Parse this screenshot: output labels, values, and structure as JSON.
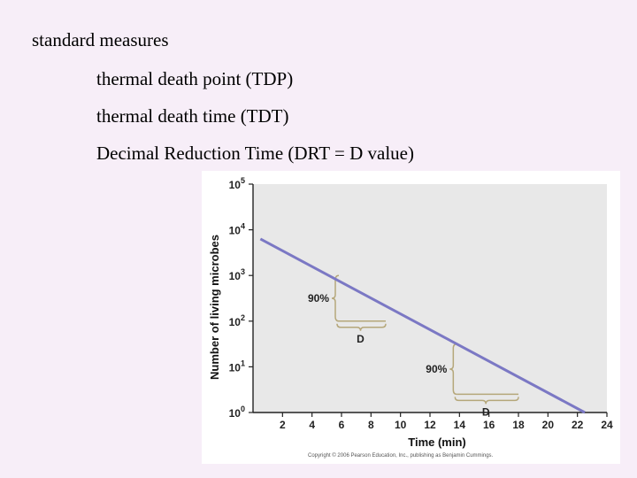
{
  "slide": {
    "lines": [
      "standard measures",
      "thermal death point (TDP)",
      "thermal death time (TDT)",
      "Decimal Reduction Time (DRT = D value)"
    ]
  },
  "chart_data": {
    "type": "line",
    "xlabel": "Time (min)",
    "ylabel": "Number of living microbes",
    "y_scale": "log",
    "xlim": [
      0,
      24
    ],
    "ylim": [
      1,
      100000
    ],
    "x_ticks": [
      2,
      4,
      6,
      8,
      10,
      12,
      14,
      16,
      18,
      20,
      22,
      24
    ],
    "y_ticks": [
      {
        "base": "10",
        "exp": "0"
      },
      {
        "base": "10",
        "exp": "1"
      },
      {
        "base": "10",
        "exp": "2"
      },
      {
        "base": "10",
        "exp": "3"
      },
      {
        "base": "10",
        "exp": "4"
      },
      {
        "base": "10",
        "exp": "5"
      }
    ],
    "series": [
      {
        "x": [
          0.5,
          22.5
        ],
        "y": [
          6310,
          1
        ]
      }
    ],
    "annotations": [
      {
        "percent_label": "90%",
        "d_label": "D",
        "x_start": 6,
        "x_end": 9,
        "y_high": 1000,
        "y_low": 100
      },
      {
        "percent_label": "90%",
        "d_label": "D",
        "x_start": 14,
        "x_end": 18,
        "y_high": 31.6,
        "y_low": 2.51
      }
    ],
    "colors": {
      "line": "#7b78c4",
      "annotation": "#b5a77a",
      "plot_bg": "#e8e8e8"
    },
    "grid": false,
    "copyright": "Copyright © 2006 Pearson Education, Inc., publishing as Benjamin Cummings."
  }
}
